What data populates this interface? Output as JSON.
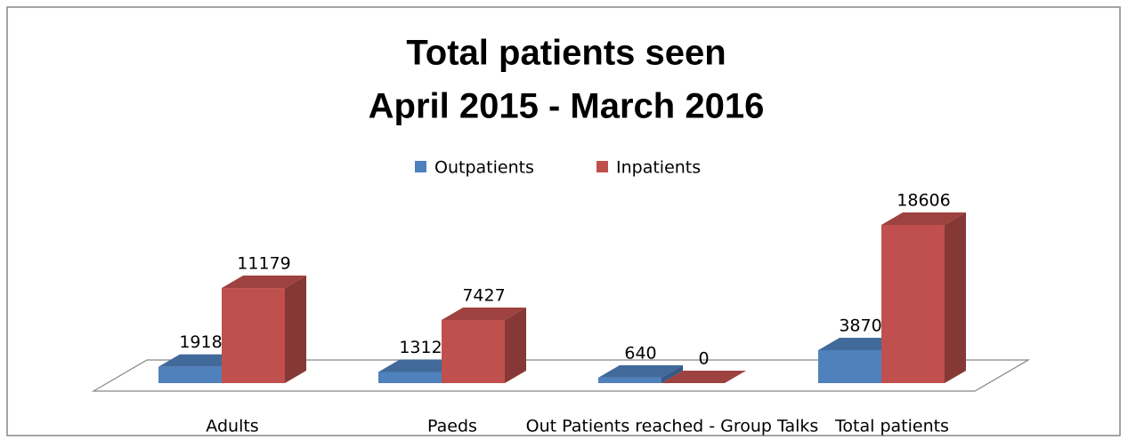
{
  "chart_data": {
    "type": "bar3d",
    "title": "Total patients seen",
    "subtitle": "April 2015 - March 2016",
    "categories": [
      "Adults",
      "Paeds",
      "Out Patients reached - Group Talks",
      "Total patients"
    ],
    "series": [
      {
        "name": "Outpatients",
        "color": "#4f81bd",
        "values": [
          1918,
          1312,
          640,
          3870
        ]
      },
      {
        "name": "Inpatients",
        "color": "#c0504d",
        "values": [
          11179,
          7427,
          0,
          18606
        ]
      }
    ],
    "legend": "top"
  }
}
